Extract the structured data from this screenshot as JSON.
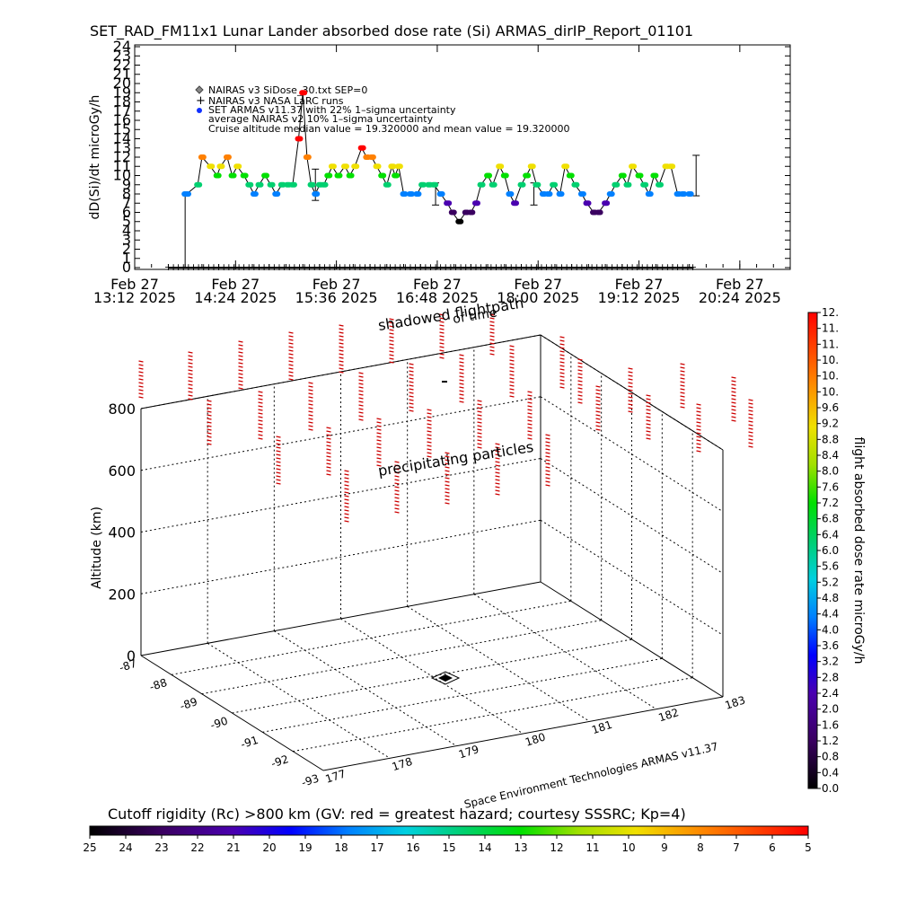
{
  "title": "SET_RAD_FM11x1  Lunar Lander absorbed dose rate (Si) ARMAS_dirIP_Report_01101",
  "top_chart": {
    "ylabel": "dD(Si)/dt microGy/h",
    "yticks": [
      "0",
      "1",
      "2",
      "3",
      "4",
      "5",
      "6",
      "7",
      "8",
      "9",
      "10",
      "11",
      "12",
      "13",
      "14",
      "15",
      "16",
      "17",
      "18",
      "19",
      "20",
      "21",
      "22",
      "23",
      "24"
    ],
    "xticks": [
      {
        "l1": "Feb 27",
        "l2": "13:12 2025"
      },
      {
        "l1": "Feb 27",
        "l2": "14:24 2025"
      },
      {
        "l1": "Feb 27",
        "l2": "15:36 2025"
      },
      {
        "l1": "Feb 27",
        "l2": "16:48 2025"
      },
      {
        "l1": "Feb 27",
        "l2": "18:00 2025"
      },
      {
        "l1": "Feb 27",
        "l2": "19:12 2025"
      },
      {
        "l1": "Feb 27",
        "l2": "20:24 2025"
      }
    ],
    "legend": [
      "NAIRAS v3 SiDose_30.txt SEP=0",
      "NAIRAS v3 NASA LaRC runs",
      "SET ARMAS v11.37 with 22% 1–sigma uncertainty",
      "average NAIRAS v2 10% 1–sigma uncertainty",
      "Cruise altitude median value = 19.320000 and mean value = 19.320000"
    ]
  },
  "scene": {
    "label_flightpath": "shadowed flightpath",
    "label_time": "of time",
    "label_particles": "precipitating particles",
    "zlabel": "Altitude (km)",
    "zticks": [
      "0",
      "200",
      "400",
      "600",
      "800"
    ],
    "lat_ticks": [
      "-87",
      "-88",
      "-89",
      "-90",
      "-91",
      "-92",
      "-93"
    ],
    "lon_ticks": [
      "177",
      "178",
      "179",
      "180",
      "181",
      "182",
      "183"
    ],
    "credit": "Space Environment Technologies ARMAS v11.37"
  },
  "dose_colorbar": {
    "label": "flight absorbed dose rate microGy/h",
    "ticks": [
      "0.0",
      "0.4",
      "0.8",
      "1.2",
      "1.6",
      "2.0",
      "2.4",
      "2.8",
      "3.2",
      "3.6",
      "4.0",
      "4.4",
      "4.8",
      "5.2",
      "5.6",
      "6.0",
      "6.4",
      "6.8",
      "7.2",
      "7.6",
      "8.0",
      "8.4",
      "8.8",
      "9.2",
      "9.6",
      "10.",
      "10.",
      "10.",
      "11.",
      "11.",
      "12."
    ]
  },
  "rigidity_colorbar": {
    "title": "Cutoff rigidity (Rc) >800 km (GV: red = greatest hazard; courtesy SSSRC; Kp=4)",
    "ticks": [
      "25",
      "24",
      "23",
      "22",
      "21",
      "20",
      "19",
      "18",
      "17",
      "16",
      "15",
      "14",
      "13",
      "12",
      "11",
      "10",
      "9",
      "8",
      "7",
      "6",
      "5"
    ]
  },
  "chart_data": {
    "type": "scatter",
    "title": "SET_RAD_FM11x1  Lunar Lander absorbed dose rate (Si) ARMAS_dirIP_Report_01101",
    "xlabel": "",
    "ylabel": "dD(Si)/dt microGy/h",
    "xlim": [
      "Feb 27 13:12 2025",
      "Feb 27 21:00 2025"
    ],
    "ylim": [
      0,
      24
    ],
    "x_format": "hours of day (Feb 27 2025)",
    "series": [
      {
        "name": "SET ARMAS v11.37 with 22% 1–sigma uncertainty",
        "x": [
          13.8,
          13.82,
          13.95,
          14.0,
          14.1,
          14.18,
          14.22,
          14.3,
          14.36,
          14.42,
          14.5,
          14.56,
          14.62,
          14.68,
          14.75,
          14.82,
          14.88,
          14.95,
          15.02,
          15.08,
          15.15,
          15.2,
          15.25,
          15.3,
          15.35,
          15.4,
          15.45,
          15.5,
          15.55,
          15.62,
          15.7,
          15.76,
          15.82,
          15.9,
          15.96,
          16.02,
          16.08,
          16.14,
          16.2,
          16.26,
          16.3,
          16.34,
          16.4,
          16.48,
          16.56,
          16.62,
          16.7,
          16.76,
          16.84,
          16.92,
          16.98,
          17.06,
          17.14,
          17.2,
          17.26,
          17.32,
          17.4,
          17.46,
          17.54,
          17.6,
          17.66,
          17.72,
          17.8,
          17.86,
          17.92,
          17.98,
          18.06,
          18.12,
          18.18,
          18.26,
          18.32,
          18.38,
          18.44,
          18.52,
          18.58,
          18.66,
          18.72,
          18.8,
          18.86,
          18.92,
          19.0,
          19.06,
          19.12,
          19.2,
          19.26,
          19.32,
          19.38,
          19.44,
          19.52,
          19.58,
          19.66,
          19.72,
          19.8
        ],
        "y": [
          8,
          8,
          9,
          12,
          11,
          10,
          11,
          12,
          10,
          11,
          10,
          9,
          8,
          9,
          10,
          9,
          8,
          9,
          9,
          9,
          14,
          19,
          12,
          9,
          8,
          9,
          9,
          10,
          11,
          10,
          11,
          10,
          11,
          13,
          12,
          12,
          11,
          10,
          9,
          11,
          10,
          11,
          8,
          8,
          8,
          9,
          9,
          9,
          8,
          7,
          6,
          5,
          6,
          6,
          7,
          9,
          10,
          9,
          11,
          10,
          8,
          7,
          9,
          10,
          11,
          9,
          8,
          8,
          9,
          8,
          11,
          10,
          9,
          8,
          7,
          6,
          6,
          7,
          8,
          9,
          10,
          9,
          11,
          10,
          9,
          8,
          10,
          9,
          11,
          11,
          8,
          8,
          8
        ]
      },
      {
        "name": "average NAIRAS v2 10% 1–sigma uncertainty",
        "x": [
          13.6,
          21.0
        ],
        "y": [
          0,
          0
        ]
      }
    ]
  }
}
